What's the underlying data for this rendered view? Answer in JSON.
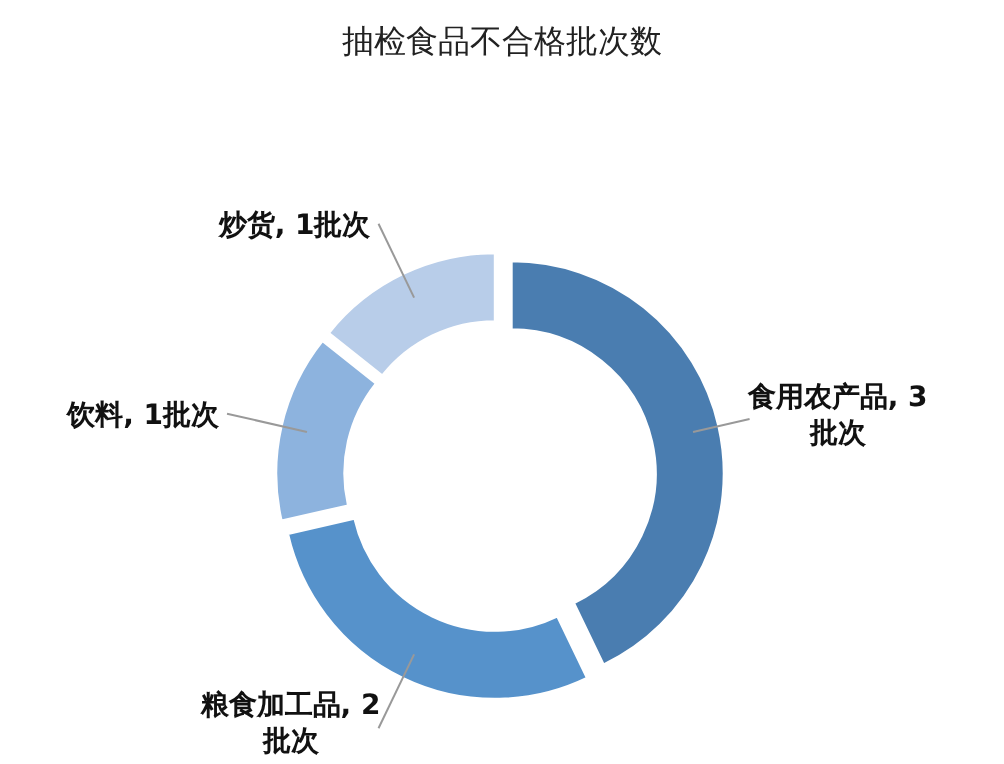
{
  "chart_data": {
    "type": "donut",
    "title": "抽检食品不合格批次数",
    "categories": [
      "食用农产品",
      "粮食加工品",
      "饮料",
      "炒货"
    ],
    "values": [
      3,
      2,
      1,
      1
    ],
    "value_labels": [
      "3批次",
      "2批次",
      "1批次",
      "1批次"
    ],
    "colors": [
      "#4a7db0",
      "#5692cb",
      "#8db3de",
      "#b8cde9"
    ]
  }
}
